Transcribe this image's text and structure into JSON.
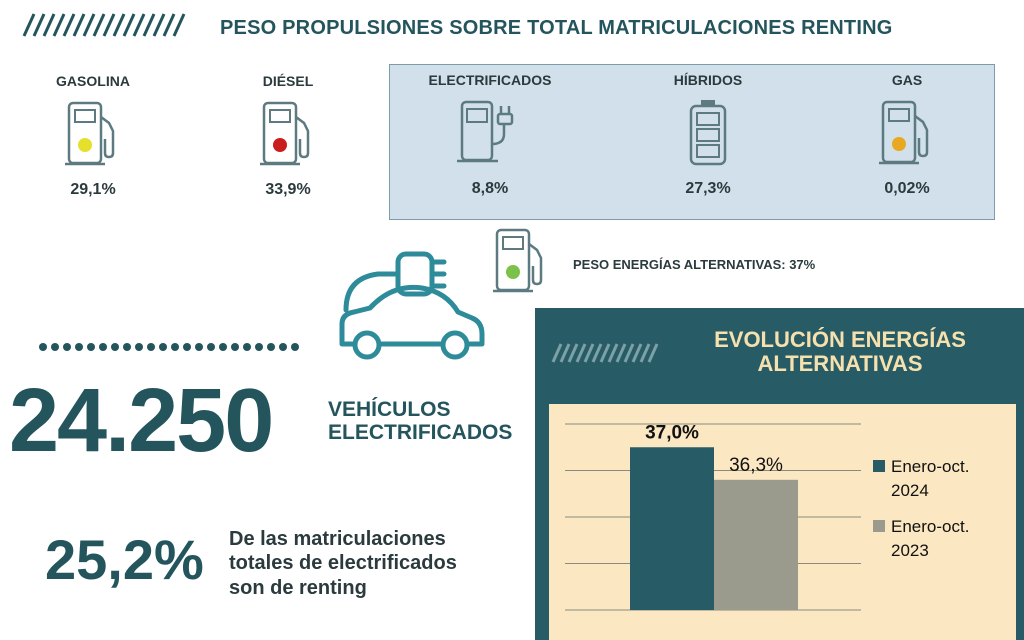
{
  "header": {
    "title": "PESO PROPULSIONES SOBRE TOTAL MATRICULACIONES RENTING"
  },
  "fuels": [
    {
      "label": "GASOLINA",
      "value": "29,1%",
      "icon": "fuel-pump-icon",
      "dot_color": "#e5e02c"
    },
    {
      "label": "DIÉSEL",
      "value": "33,9%",
      "icon": "fuel-pump-icon",
      "dot_color": "#c81e1e"
    }
  ],
  "alternatives": [
    {
      "label": "ELECTRIFICADOS",
      "value": "8,8%",
      "icon": "ev-charger-icon"
    },
    {
      "label": "HÍBRIDOS",
      "value": "27,3%",
      "icon": "battery-icon"
    },
    {
      "label": "GAS",
      "value": "0,02%",
      "icon": "fuel-pump-icon",
      "dot_color": "#e8a822"
    }
  ],
  "alt_total": {
    "label": "PESO ENERGÍAS ALTERNATIVAS: 37%",
    "icon": "fuel-pump-icon",
    "dot_color": "#7cc14a"
  },
  "electrified": {
    "count": "24.250",
    "caption_line1": "VEHÍCULOS",
    "caption_line2": "ELECTRIFICADOS",
    "icon": "electric-car-icon"
  },
  "share": {
    "value": "25,2%",
    "line1": "De las matriculaciones",
    "line2": "totales de electrificados",
    "line3": "son de renting"
  },
  "chart_panel": {
    "title_line1": "EVOLUCIÓN ENERGÍAS",
    "title_line2": "ALTERNATIVAS"
  },
  "colors": {
    "teal": "#275c66",
    "accent": "#24555d",
    "panel_bg": "#fbe8c2",
    "grey": "#9a9b8c",
    "alt_box": "#d1e0ea"
  },
  "chart_data": {
    "type": "bar",
    "title": "EVOLUCIÓN ENERGÍAS ALTERNATIVAS",
    "series": [
      {
        "name": "Enero-oct. 2024",
        "value": 37.0,
        "label": "37,0%",
        "color": "#275c66"
      },
      {
        "name": "Enero-oct. 2023",
        "value": 36.3,
        "label": "36,3%",
        "color": "#9a9b8c"
      }
    ],
    "legend": {
      "position": "right",
      "entries": [
        [
          "Enero-oct.",
          "2024"
        ],
        [
          "Enero-oct.",
          "2023"
        ]
      ]
    },
    "ylim": [
      33.5,
      37.5
    ],
    "grid": true
  }
}
